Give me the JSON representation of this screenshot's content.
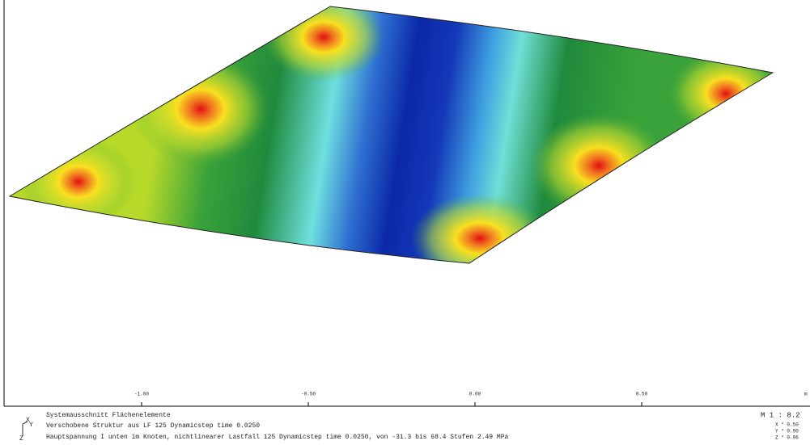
{
  "ruler": {
    "ticks": [
      "-1.00",
      "-0.50",
      "0.00",
      "0.50"
    ],
    "unit": "m"
  },
  "footer": {
    "lines": [
      "Systemausschnitt Flächenelemente",
      "Verschobene Struktur aus LF 125 Dynamicstep time  0.0250",
      "Hauptspannung I unten im Knoten, nichtlinearer Lastfall 125 Dynamicstep time  0.0250, von -31.3 bis 68.4 Stufen 2.49 MPa"
    ],
    "scale": "M 1 :  8.2",
    "factors": [
      "X * 0.50",
      "Y * 0.90",
      "Z * 0.96"
    ],
    "axes": [
      "X",
      "Y",
      "Z"
    ]
  }
}
